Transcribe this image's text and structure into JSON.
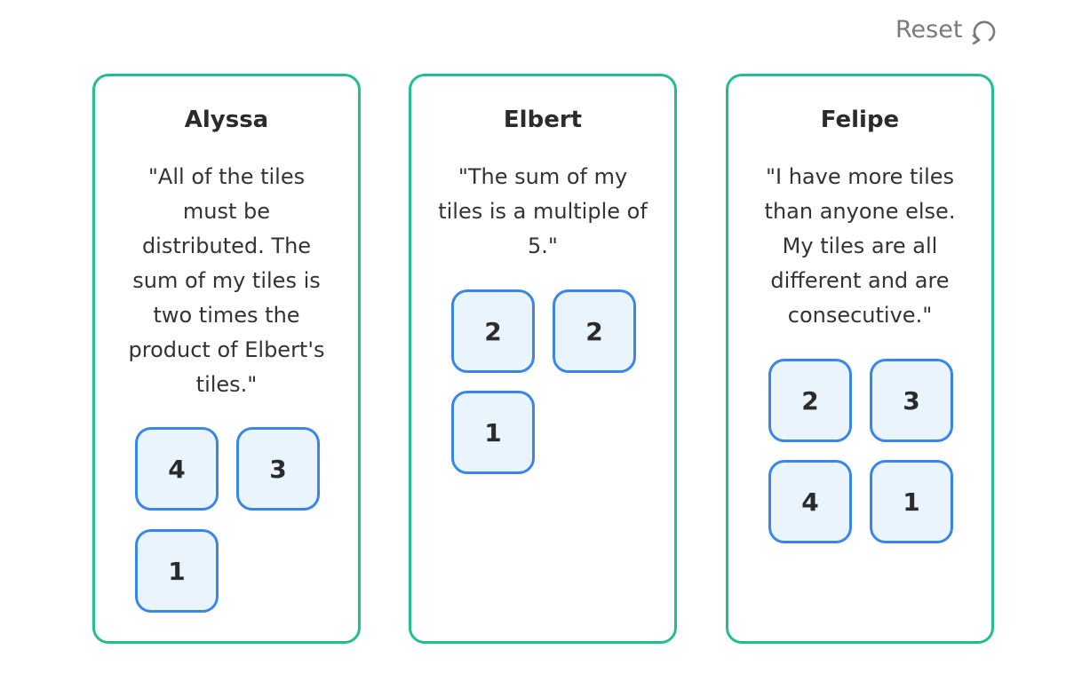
{
  "reset": {
    "label": "Reset",
    "icon": "reset-arrow-icon"
  },
  "colors": {
    "panel_border": "#21c08b",
    "tile_border": "#3a86e8",
    "tile_fill": "#eaf4fd"
  },
  "panels": [
    {
      "name": "Alyssa",
      "quote": "\"All of the tiles must be distributed. The sum of my tiles is two times the product of Elbert's tiles.\"",
      "tiles": [
        "4",
        "3",
        "1"
      ]
    },
    {
      "name": "Elbert",
      "quote": "\"The sum of my tiles is a multiple of 5.\"",
      "tiles": [
        "2",
        "2",
        "1"
      ]
    },
    {
      "name": "Felipe",
      "quote": "\"I have more tiles than anyone else. My tiles are all different and are consecutive.\"",
      "tiles": [
        "2",
        "3",
        "4",
        "1"
      ]
    }
  ]
}
